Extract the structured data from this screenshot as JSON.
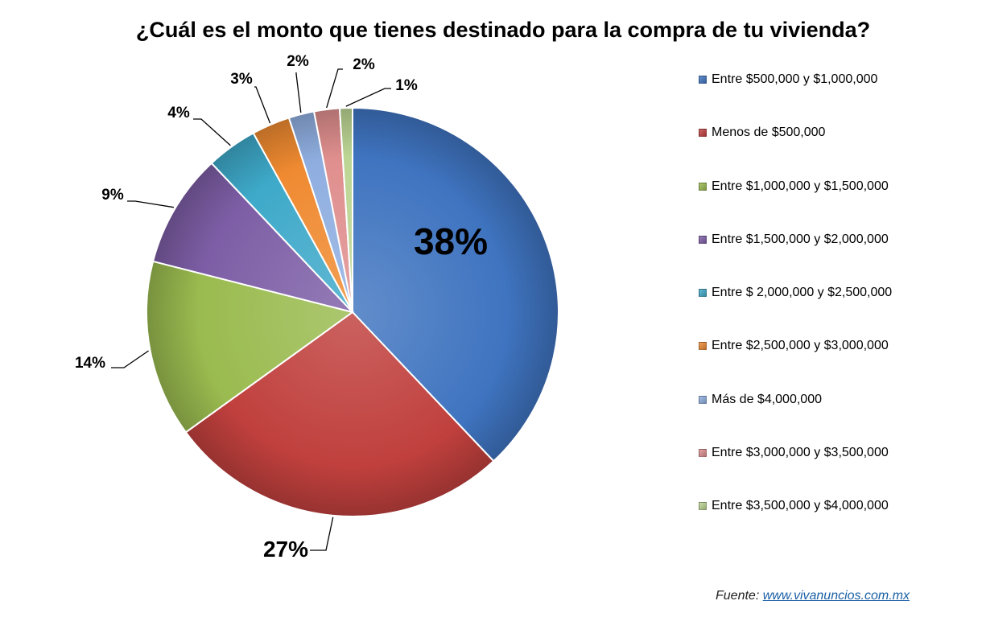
{
  "chart_data": {
    "type": "pie",
    "title": "¿Cuál es el monto que tienes destinado para la compra de tu vivienda?",
    "slices": [
      {
        "label": "Entre $500,000 y $1,000,000",
        "value": 38,
        "display": "38%",
        "color": "#3f74c0"
      },
      {
        "label": "Menos de $500,000",
        "value": 27,
        "display": "27%",
        "color": "#c0403d"
      },
      {
        "label": "Entre $1,000,000 y $1,500,000",
        "value": 14,
        "display": "14%",
        "color": "#9abb4f"
      },
      {
        "label": "Entre $1,500,000 y $2,000,000",
        "value": 9,
        "display": "9%",
        "color": "#7d5ea6"
      },
      {
        "label": "Entre $ 2,000,000 y $2,500,000",
        "value": 4,
        "display": "4%",
        "color": "#3ea9c9"
      },
      {
        "label": "Entre $2,500,000 y $3,000,000",
        "value": 3,
        "display": "3%",
        "color": "#ef8a31"
      },
      {
        "label": "Más de $4,000,000",
        "value": 2,
        "display": "2%",
        "color": "#8faee0"
      },
      {
        "label": "Entre $3,000,000 y $3,500,000",
        "value": 2,
        "display": "2%",
        "color": "#df8f8e"
      },
      {
        "label": "Entre $3,500,000 y $4,000,000",
        "value": 1,
        "display": "1%",
        "color": "#bcd594"
      }
    ],
    "legend_position": "right"
  },
  "source": {
    "label": "Fuente:",
    "link": "www.vivanuncios.com.mx"
  }
}
